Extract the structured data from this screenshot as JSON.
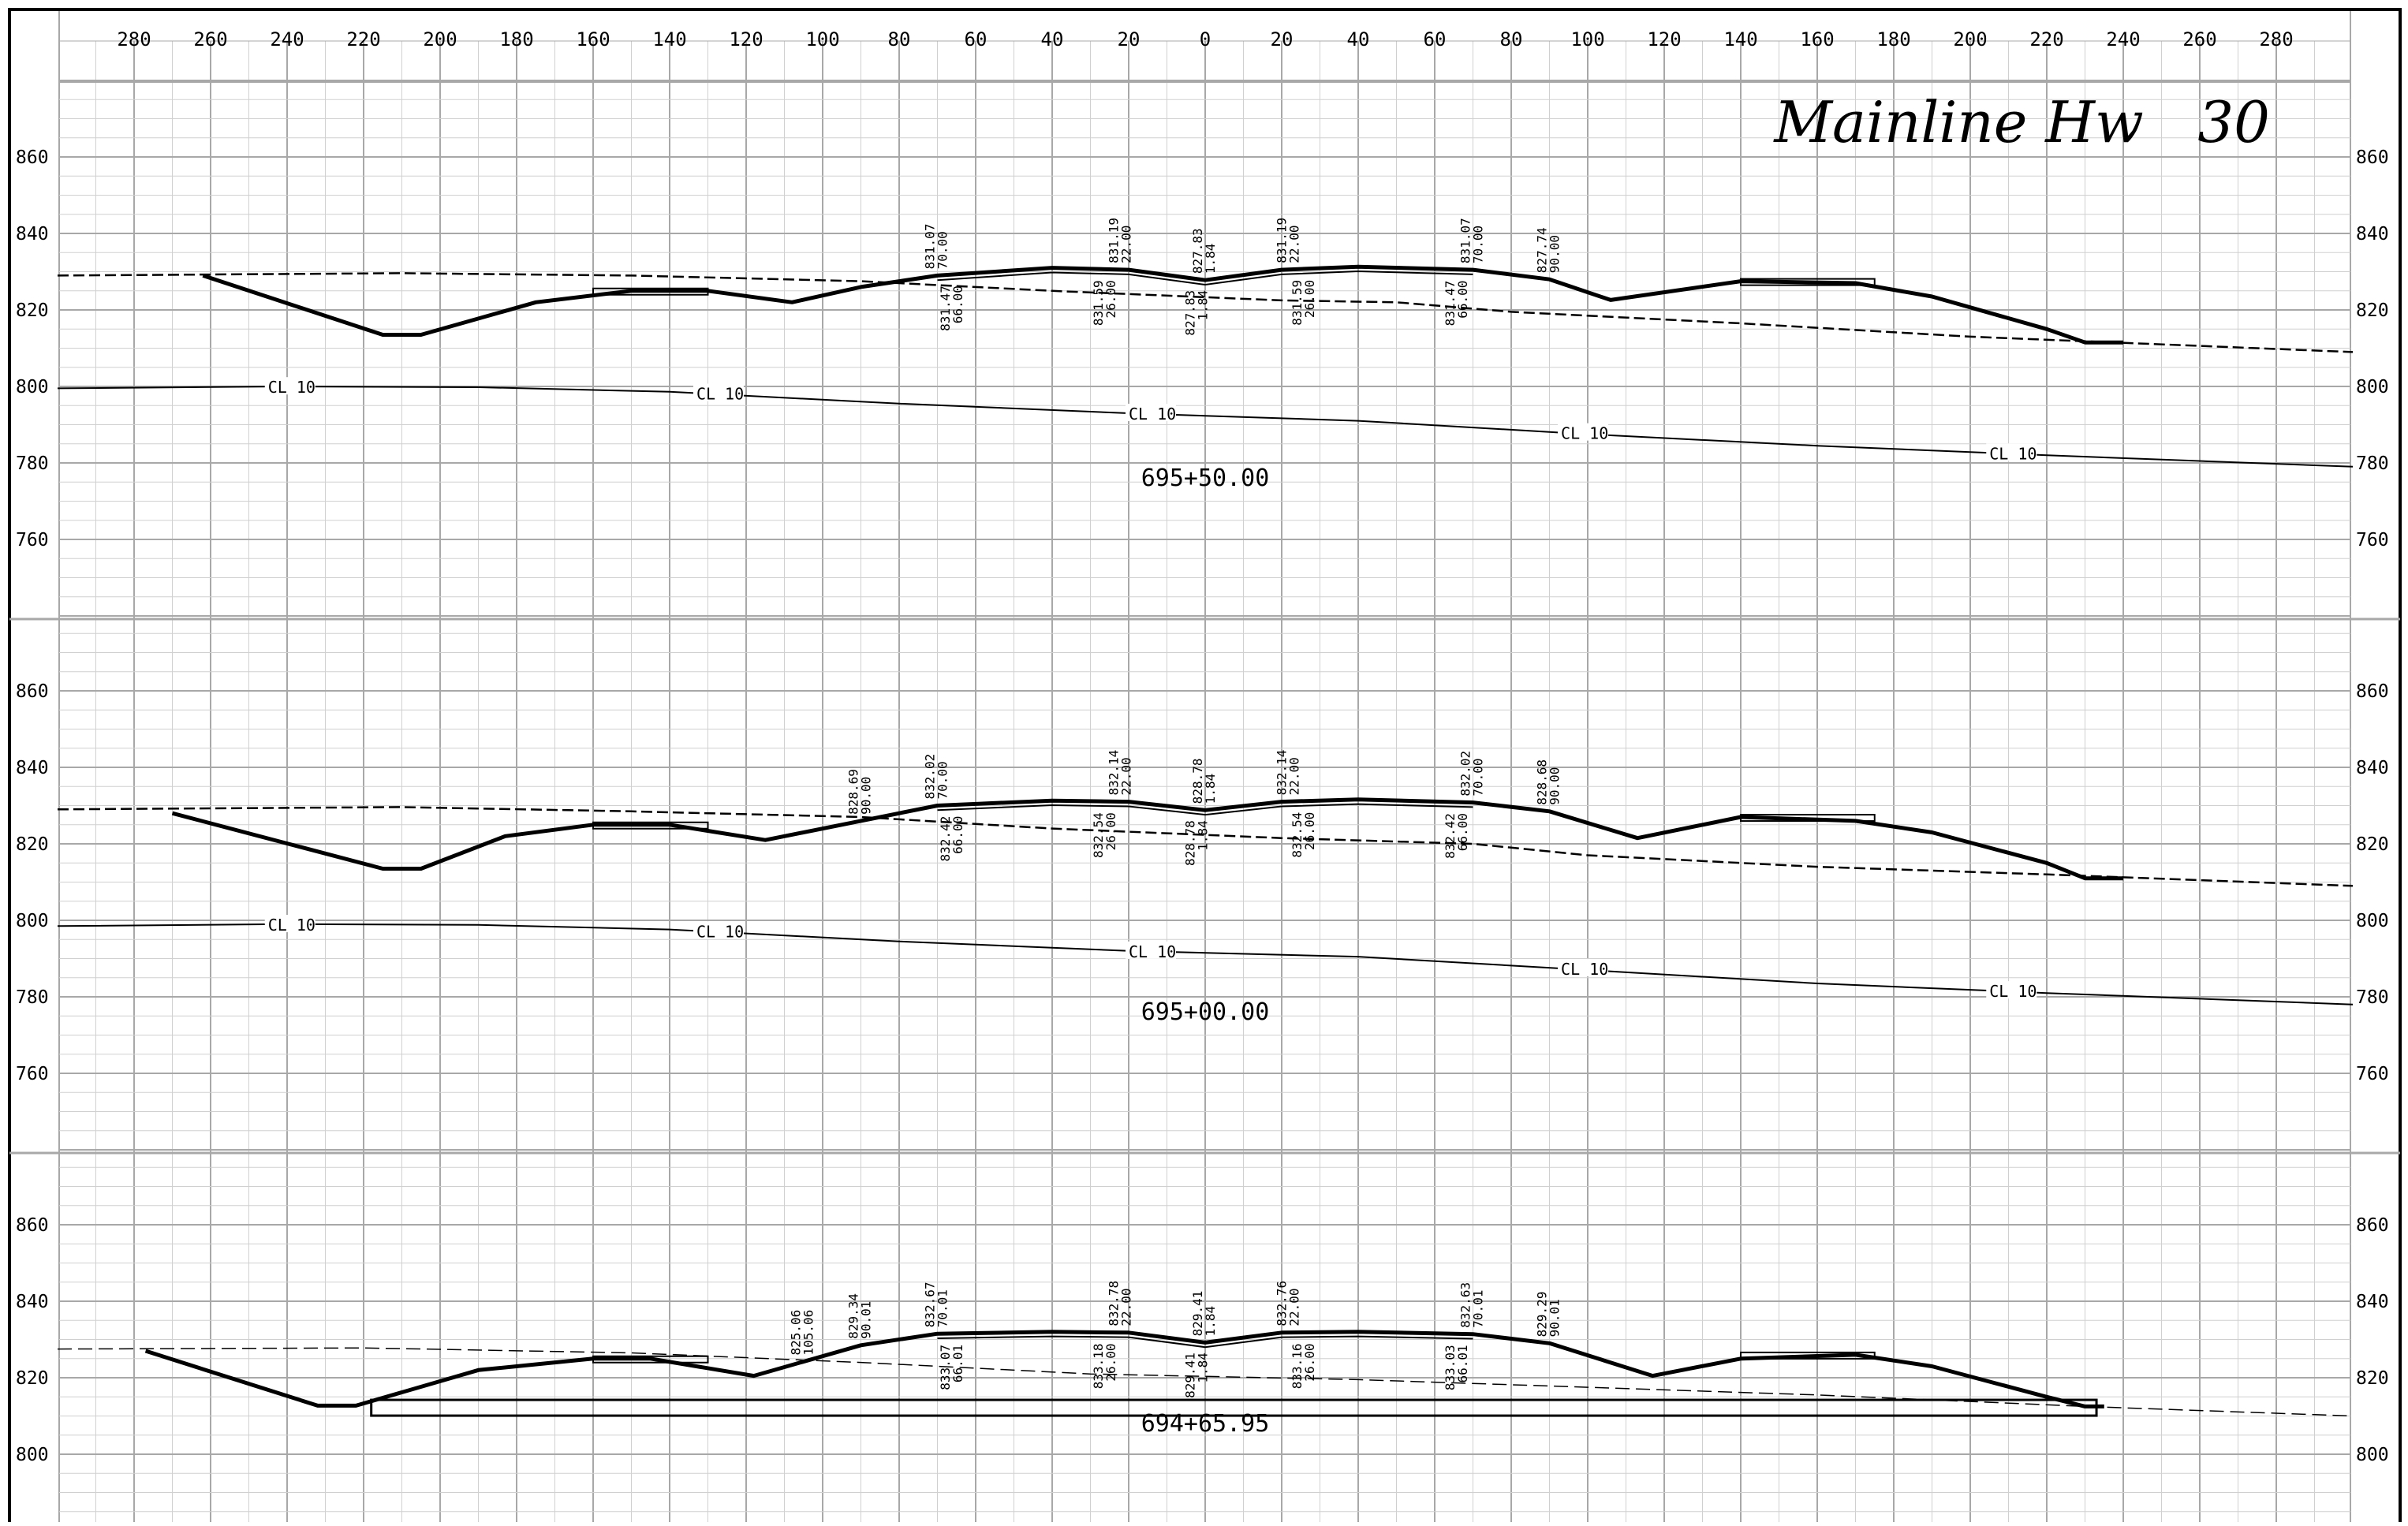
{
  "title": "Mainline Hw   30",
  "top_axis_labels": [
    "280",
    "260",
    "240",
    "220",
    "200",
    "180",
    "160",
    "140",
    "120",
    "100",
    "80",
    "60",
    "40",
    "20",
    "0",
    "20",
    "40",
    "60",
    "80",
    "100",
    "120",
    "140",
    "160",
    "180",
    "200",
    "220",
    "240",
    "260",
    "280"
  ],
  "top_axis_offsets": [
    -280,
    -260,
    -240,
    -220,
    -200,
    -180,
    -160,
    -140,
    -120,
    -100,
    -80,
    -60,
    -40,
    -20,
    0,
    20,
    40,
    60,
    80,
    100,
    120,
    140,
    160,
    180,
    200,
    220,
    240,
    260,
    280
  ],
  "colors": {
    "ink": "#000000",
    "grid_minor": "#d0d0d0",
    "grid_major": "#a8a8a8",
    "paper": "#ffffff"
  },
  "sections": [
    {
      "station": "695+50.00",
      "elev_labels": [
        "860",
        "840",
        "820",
        "800",
        "780",
        "760"
      ],
      "elevations": [
        860,
        840,
        820,
        800,
        780,
        760
      ],
      "cl_label": "CL 10",
      "cl_line": [
        [
          -300,
          799.5
        ],
        [
          -240,
          800
        ],
        [
          -190,
          799.8
        ],
        [
          -140,
          798.6
        ],
        [
          -80,
          795.5
        ],
        [
          -20,
          793
        ],
        [
          40,
          791
        ],
        [
          100,
          787.5
        ],
        [
          160,
          784.5
        ],
        [
          220,
          782
        ],
        [
          300,
          779
        ]
      ],
      "cl_label_offsets": [
        -245,
        -133,
        -20,
        93,
        205
      ],
      "existing_ground": [
        [
          -300,
          829
        ],
        [
          -210,
          829.6
        ],
        [
          -150,
          829
        ],
        [
          -90,
          827.5
        ],
        [
          -40,
          825
        ],
        [
          20,
          822.5
        ],
        [
          50,
          822
        ],
        [
          80,
          819.5
        ],
        [
          140,
          816.5
        ],
        [
          200,
          813
        ],
        [
          300,
          809
        ]
      ],
      "design_profile": [
        [
          -262,
          829
        ],
        [
          -215,
          813.5
        ],
        [
          -205,
          813.5
        ],
        [
          -175,
          822
        ],
        [
          -150,
          825
        ],
        [
          -130,
          825
        ],
        [
          -108,
          822
        ],
        [
          -90,
          826
        ],
        [
          -70,
          829
        ],
        [
          -40,
          831
        ],
        [
          -20,
          830.5
        ],
        [
          0,
          827.8
        ],
        [
          20,
          830.5
        ],
        [
          40,
          831.3
        ],
        [
          70,
          830.5
        ],
        [
          90,
          828
        ],
        [
          106,
          822.6
        ],
        [
          140,
          827.5
        ],
        [
          170,
          827
        ],
        [
          190,
          823.5
        ],
        [
          220,
          815
        ],
        [
          230,
          811.5
        ],
        [
          240,
          811.5
        ]
      ],
      "annotations": [
        {
          "offset": -70,
          "lines": [
            "831.07",
            "70.00"
          ],
          "side": "above"
        },
        {
          "offset": -22,
          "lines": [
            "831.19",
            "22.00"
          ],
          "side": "above"
        },
        {
          "offset": 0,
          "lines": [
            "827.83",
            "1.84"
          ],
          "side": "above"
        },
        {
          "offset": 22,
          "lines": [
            "831.19",
            "22.00"
          ],
          "side": "above"
        },
        {
          "offset": 70,
          "lines": [
            "831.07",
            "70.00"
          ],
          "side": "above"
        },
        {
          "offset": 90,
          "lines": [
            "827.74",
            "90.00"
          ],
          "side": "above"
        },
        {
          "offset": -66,
          "lines": [
            "831.47",
            "66.00"
          ],
          "side": "below"
        },
        {
          "offset": -26,
          "lines": [
            "831.59",
            "26.00"
          ],
          "side": "below"
        },
        {
          "offset": -2,
          "lines": [
            "827.83",
            "1.84"
          ],
          "side": "below"
        },
        {
          "offset": 26,
          "lines": [
            "831.59",
            "26.00"
          ],
          "side": "below"
        },
        {
          "offset": 66,
          "lines": [
            "831.47",
            "66.00"
          ],
          "side": "below"
        }
      ]
    },
    {
      "station": "695+00.00",
      "elev_labels": [
        "860",
        "840",
        "820",
        "800",
        "780",
        "760"
      ],
      "elevations": [
        860,
        840,
        820,
        800,
        780,
        760
      ],
      "cl_label": "CL 10",
      "cl_line": [
        [
          -300,
          798.5
        ],
        [
          -240,
          799
        ],
        [
          -190,
          798.8
        ],
        [
          -140,
          797.6
        ],
        [
          -80,
          794.5
        ],
        [
          -20,
          792
        ],
        [
          40,
          790.5
        ],
        [
          100,
          787
        ],
        [
          160,
          783.5
        ],
        [
          220,
          781
        ],
        [
          300,
          778
        ]
      ],
      "cl_label_offsets": [
        -245,
        -133,
        -20,
        93,
        205
      ],
      "existing_ground": [
        [
          -300,
          829
        ],
        [
          -210,
          829.6
        ],
        [
          -150,
          828.5
        ],
        [
          -90,
          827
        ],
        [
          -40,
          824
        ],
        [
          20,
          821.5
        ],
        [
          70,
          820
        ],
        [
          100,
          817
        ],
        [
          160,
          814
        ],
        [
          220,
          812
        ],
        [
          300,
          809
        ]
      ],
      "design_profile": [
        [
          -270,
          828
        ],
        [
          -215,
          813.5
        ],
        [
          -205,
          813.5
        ],
        [
          -183,
          822
        ],
        [
          -160,
          825
        ],
        [
          -140,
          825
        ],
        [
          -115,
          821
        ],
        [
          -90,
          826
        ],
        [
          -70,
          830
        ],
        [
          -40,
          831.3
        ],
        [
          -20,
          831
        ],
        [
          0,
          828.8
        ],
        [
          20,
          831
        ],
        [
          40,
          831.6
        ],
        [
          70,
          830.8
        ],
        [
          90,
          828.5
        ],
        [
          113,
          821.5
        ],
        [
          140,
          827
        ],
        [
          170,
          826
        ],
        [
          190,
          823
        ],
        [
          220,
          815
        ],
        [
          230,
          811
        ],
        [
          240,
          811
        ]
      ],
      "annotations": [
        {
          "offset": -90,
          "lines": [
            "828.69",
            "90.00"
          ],
          "side": "above"
        },
        {
          "offset": -70,
          "lines": [
            "832.02",
            "70.00"
          ],
          "side": "above"
        },
        {
          "offset": -22,
          "lines": [
            "832.14",
            "22.00"
          ],
          "side": "above"
        },
        {
          "offset": 0,
          "lines": [
            "828.78",
            "1.84"
          ],
          "side": "above"
        },
        {
          "offset": 22,
          "lines": [
            "832.14",
            "22.00"
          ],
          "side": "above"
        },
        {
          "offset": 70,
          "lines": [
            "832.02",
            "70.00"
          ],
          "side": "above"
        },
        {
          "offset": 90,
          "lines": [
            "828.68",
            "90.00"
          ],
          "side": "above"
        },
        {
          "offset": -66,
          "lines": [
            "832.42",
            "66.00"
          ],
          "side": "below"
        },
        {
          "offset": -26,
          "lines": [
            "832.54",
            "26.00"
          ],
          "side": "below"
        },
        {
          "offset": -2,
          "lines": [
            "828.78",
            "1.84"
          ],
          "side": "below"
        },
        {
          "offset": 26,
          "lines": [
            "832.54",
            "26.00"
          ],
          "side": "below"
        },
        {
          "offset": 66,
          "lines": [
            "832.42",
            "66.00"
          ],
          "side": "below"
        }
      ]
    },
    {
      "station": "694+65.95",
      "elev_labels": [
        "860",
        "840",
        "820",
        "800"
      ],
      "elevations": [
        860,
        840,
        820,
        800
      ],
      "cl_label": "",
      "cl_line": [],
      "cl_label_offsets": [],
      "existing_ground": [
        [
          -300,
          827.5
        ],
        [
          -220,
          827.8
        ],
        [
          -150,
          826.5
        ],
        [
          -90,
          824
        ],
        [
          -30,
          821
        ],
        [
          40,
          819.5
        ],
        [
          100,
          817.5
        ],
        [
          160,
          815.5
        ],
        [
          230,
          812.5
        ],
        [
          300,
          810
        ]
      ],
      "design_profile": [
        [
          -277,
          827
        ],
        [
          -232,
          812.7
        ],
        [
          -222,
          812.7
        ],
        [
          -190,
          822
        ],
        [
          -160,
          825
        ],
        [
          -145,
          825
        ],
        [
          -118,
          820.5
        ],
        [
          -90,
          828.5
        ],
        [
          -70,
          831.5
        ],
        [
          -40,
          832
        ],
        [
          -20,
          831.8
        ],
        [
          0,
          829.2
        ],
        [
          20,
          831.8
        ],
        [
          40,
          832
        ],
        [
          70,
          831.4
        ],
        [
          90,
          829
        ],
        [
          117,
          820.5
        ],
        [
          140,
          825
        ],
        [
          170,
          826
        ],
        [
          190,
          823
        ],
        [
          220,
          815
        ],
        [
          230,
          812.5
        ],
        [
          235,
          812.5
        ]
      ],
      "structure_line": [
        [
          -218,
          813.8
        ],
        [
          233,
          813.5
        ]
      ],
      "annotations": [
        {
          "offset": -105,
          "lines": [
            "825.06",
            "105.06"
          ],
          "side": "above"
        },
        {
          "offset": -90,
          "lines": [
            "829.34",
            "90.01"
          ],
          "side": "above"
        },
        {
          "offset": -70,
          "lines": [
            "832.67",
            "70.01"
          ],
          "side": "above"
        },
        {
          "offset": -22,
          "lines": [
            "832.78",
            "22.00"
          ],
          "side": "above"
        },
        {
          "offset": 0,
          "lines": [
            "829.41",
            "1.84"
          ],
          "side": "above"
        },
        {
          "offset": 22,
          "lines": [
            "832.76",
            "22.00"
          ],
          "side": "above"
        },
        {
          "offset": 70,
          "lines": [
            "832.63",
            "70.01"
          ],
          "side": "above"
        },
        {
          "offset": 90,
          "lines": [
            "829.29",
            "90.01"
          ],
          "side": "above"
        },
        {
          "offset": -66,
          "lines": [
            "833.07",
            "66.01"
          ],
          "side": "below"
        },
        {
          "offset": -26,
          "lines": [
            "833.18",
            "26.00"
          ],
          "side": "below"
        },
        {
          "offset": -2,
          "lines": [
            "829.41",
            "1.84"
          ],
          "side": "below"
        },
        {
          "offset": 26,
          "lines": [
            "833.16",
            "26.00"
          ],
          "side": "below"
        },
        {
          "offset": 66,
          "lines": [
            "833.03",
            "66.01"
          ],
          "side": "below"
        }
      ]
    }
  ]
}
